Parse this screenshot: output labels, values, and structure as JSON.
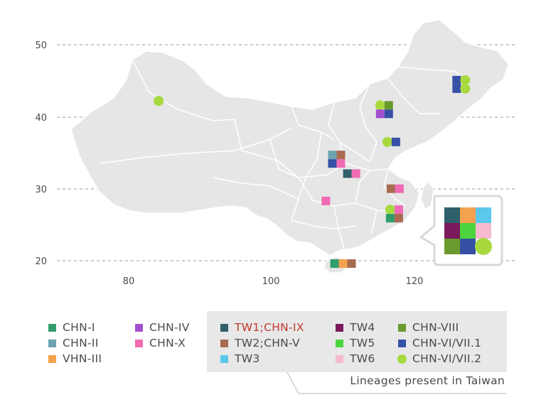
{
  "axes": {
    "lat_ticks": [
      "50",
      "40",
      "30",
      "20"
    ],
    "lon_ticks": [
      "80",
      "100",
      "120"
    ]
  },
  "legend": [
    {
      "key": "chn1",
      "label": "CHN-I",
      "color": "#2e9e6b",
      "shape": "square"
    },
    {
      "key": "chn2",
      "label": "CHN-II",
      "color": "#6fa3b0",
      "shape": "square"
    },
    {
      "key": "vhn3",
      "label": "VHN-III",
      "color": "#f4a24d",
      "shape": "square"
    },
    {
      "key": "chn4",
      "label": "CHN-IV",
      "color": "#a24fd0",
      "shape": "square"
    },
    {
      "key": "chn10",
      "label": "CHN-X",
      "color": "#f06bb4",
      "shape": "square"
    },
    {
      "key": "tw1",
      "label": "TW1;CHN-IX",
      "color": "#2f5f6a",
      "shape": "square",
      "highlight": "#c0392b"
    },
    {
      "key": "tw2",
      "label": "TW2;CHN-V",
      "color": "#a86a50",
      "shape": "square"
    },
    {
      "key": "tw3",
      "label": "TW3",
      "color": "#5bc8ec",
      "shape": "square"
    },
    {
      "key": "tw4",
      "label": "TW4",
      "color": "#7a1a5c",
      "shape": "square"
    },
    {
      "key": "tw5",
      "label": "TW5",
      "color": "#4cd43e",
      "shape": "square"
    },
    {
      "key": "tw6",
      "label": "TW6",
      "color": "#f6b9cd",
      "shape": "square"
    },
    {
      "key": "chn8",
      "label": "CHN-VIII",
      "color": "#6a9a2e",
      "shape": "square"
    },
    {
      "key": "chn671",
      "label": "CHN-VI/VII.1",
      "color": "#3550a5",
      "shape": "square"
    },
    {
      "key": "chn672",
      "label": "CHN-VI/VII.2",
      "color": "#a7d93f",
      "shape": "circle"
    }
  ],
  "taiwan_caption": "Lineages present in Taiwan",
  "sites": [
    {
      "lon": 84.2,
      "lat": 42.2,
      "lineages": [
        "chn672"
      ]
    },
    {
      "lon": 126.5,
      "lat": 44.5,
      "lineages": [
        "chn671",
        "chn672",
        "chn671",
        "chn672"
      ]
    },
    {
      "lon": 115.8,
      "lat": 41.0,
      "lineages": [
        "chn672",
        "chn8",
        "chn4",
        "chn671"
      ]
    },
    {
      "lon": 116.8,
      "lat": 36.5,
      "lineages": [
        "chn672",
        "chn671"
      ]
    },
    {
      "lon": 109.1,
      "lat": 34.1,
      "lineages": [
        "chn2",
        "tw2",
        "chn671",
        "chn10"
      ]
    },
    {
      "lon": 111.2,
      "lat": 32.1,
      "lineages": [
        "tw1",
        "chn10"
      ]
    },
    {
      "lon": 117.3,
      "lat": 30.0,
      "lineages": [
        "tw2",
        "chn10"
      ]
    },
    {
      "lon": 107.6,
      "lat": 28.3,
      "lineages": [
        "chn10"
      ]
    },
    {
      "lon": 117.2,
      "lat": 26.5,
      "lineages": [
        "chn672",
        "chn10",
        "chn1",
        "tw2"
      ]
    },
    {
      "lon": 110.0,
      "lat": 19.6,
      "lineages": [
        "chn1",
        "vhn3",
        "tw2"
      ]
    }
  ],
  "taiwan_lineages": [
    "tw1",
    "vhn3",
    "tw3",
    "tw4",
    "tw5",
    "tw6",
    "chn8",
    "chn671",
    "chn672"
  ]
}
